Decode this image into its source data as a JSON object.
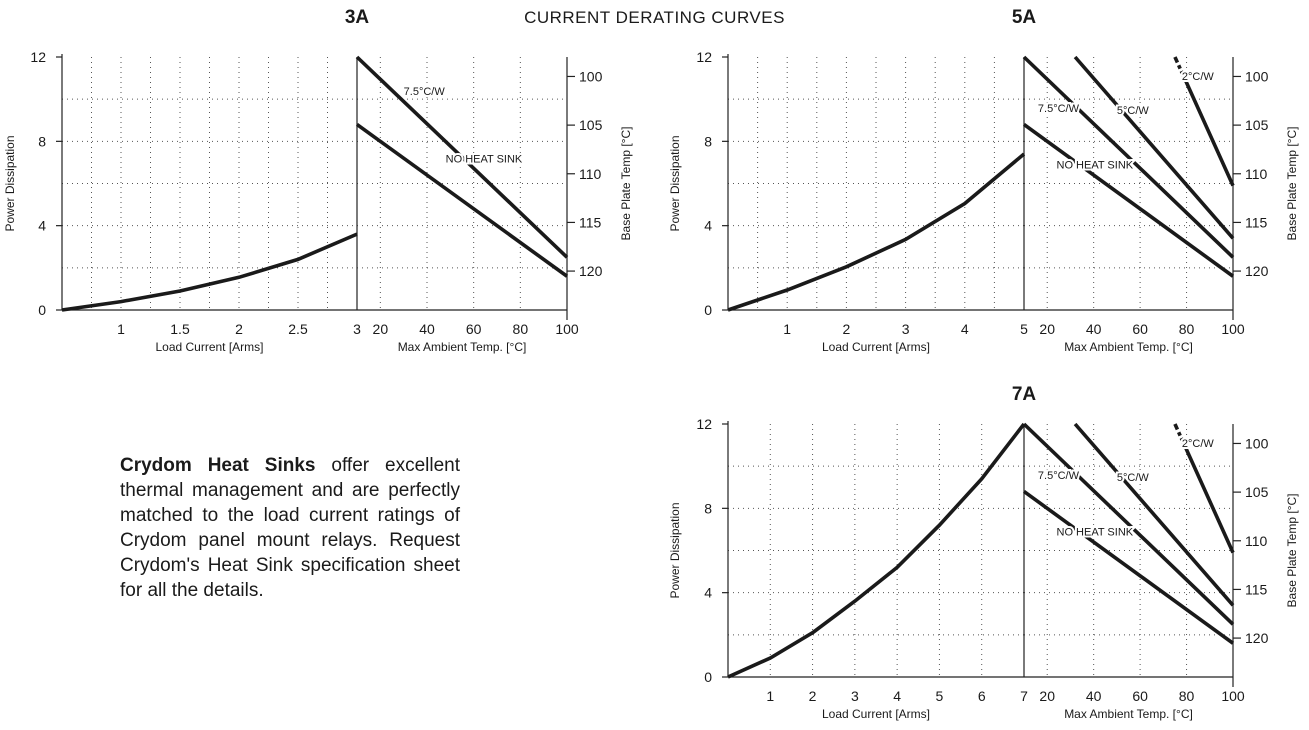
{
  "page_title": "CURRENT DERATING CURVES",
  "blurb": {
    "bold": "Crydom Heat Sinks",
    "text": " offer excellent thermal management and are perfectly matched to the load current ratings of Crydom panel mount relays. Request Crydom's Heat Sink specification sheet for all the details."
  },
  "chart_data": [
    {
      "id": "3A",
      "type": "line",
      "title": "3A",
      "left_panel": {
        "xlabel": "Load Current [Arms]",
        "ylabel": "Power Dissipation",
        "xlim": [
          0.5,
          3
        ],
        "ylim": [
          0,
          12
        ],
        "xticks": [
          1,
          1.5,
          2,
          2.5,
          3
        ],
        "xtick_labels": [
          "1",
          "1.5",
          "2",
          "2.5",
          "3"
        ],
        "yticks": [
          0,
          4,
          8,
          12
        ],
        "ytick_labels": [
          "0",
          "4",
          "8",
          "12"
        ],
        "xgrid": [
          0.75,
          1,
          1.25,
          1.5,
          1.75,
          2,
          2.25,
          2.5,
          2.75
        ],
        "ygrid": [
          2,
          4,
          6,
          8,
          10
        ],
        "series": [
          {
            "x": [
              0.5,
              1,
              1.5,
              2,
              2.5,
              3
            ],
            "y": [
              0,
              0.4,
              0.9,
              1.55,
              2.4,
              3.6
            ]
          }
        ]
      },
      "right_panel": {
        "xlabel": "Max Ambient Temp. [°C]",
        "ylabel": "Base Plate Temp [°C]",
        "xlim": [
          10,
          100
        ],
        "ylim": [
          0,
          12
        ],
        "xticks": [
          20,
          40,
          60,
          80,
          100
        ],
        "xtick_labels": [
          "20",
          "40",
          "60",
          "80",
          "100"
        ],
        "y2ticks": [
          100,
          105,
          110,
          115,
          120
        ],
        "y2tick_labels": [
          "100",
          "105",
          "110",
          "115",
          "120"
        ],
        "y2lim": [
          98,
          124
        ],
        "xgrid": [
          20,
          40,
          60,
          80
        ],
        "ygrid": [
          2,
          4,
          6,
          8,
          10
        ],
        "series": [
          {
            "name": "7.5°C/W",
            "x": [
              10,
              100
            ],
            "y": [
              12,
              2.5
            ],
            "label_at": [
              30,
              10.2
            ]
          },
          {
            "name": "NO HEAT SINK",
            "x": [
              10,
              100
            ],
            "y": [
              8.8,
              1.6
            ],
            "label_at": [
              48,
              7.0
            ]
          }
        ]
      }
    },
    {
      "id": "5A",
      "type": "line",
      "title": "5A",
      "left_panel": {
        "xlabel": "Load Current [Arms]",
        "ylabel": "Power Dissipation",
        "xlim": [
          0,
          5
        ],
        "ylim": [
          0,
          12
        ],
        "xticks": [
          1,
          2,
          3,
          4,
          5
        ],
        "xtick_labels": [
          "1",
          "2",
          "3",
          "4",
          "5"
        ],
        "yticks": [
          0,
          4,
          8,
          12
        ],
        "ytick_labels": [
          "0",
          "4",
          "8",
          "12"
        ],
        "xgrid": [
          0.5,
          1,
          1.5,
          2,
          2.5,
          3,
          3.5,
          4,
          4.5
        ],
        "ygrid": [
          2,
          4,
          6,
          8,
          10
        ],
        "series": [
          {
            "x": [
              0,
              1,
              2,
              3,
              4,
              5
            ],
            "y": [
              0,
              0.95,
              2.05,
              3.35,
              5.05,
              7.4
            ]
          }
        ]
      },
      "right_panel": {
        "xlabel": "Max Ambient Temp. [°C]",
        "ylabel": "Base Plate Temp [°C]",
        "xlim": [
          10,
          100
        ],
        "ylim": [
          0,
          12
        ],
        "xticks": [
          20,
          40,
          60,
          80,
          100
        ],
        "xtick_labels": [
          "20",
          "40",
          "60",
          "80",
          "100"
        ],
        "y2ticks": [
          100,
          105,
          110,
          115,
          120
        ],
        "y2tick_labels": [
          "100",
          "105",
          "110",
          "115",
          "120"
        ],
        "y2lim": [
          98,
          124
        ],
        "xgrid": [
          20,
          40,
          60,
          80
        ],
        "ygrid": [
          2,
          4,
          6,
          8,
          10
        ],
        "series": [
          {
            "name": "2°C/W",
            "x": [
              75,
              100
            ],
            "y": [
              12,
              5.9
            ],
            "label_at": [
              78,
              10.9
            ],
            "dashed_start": true
          },
          {
            "name": "5°C/W",
            "x": [
              32,
              100
            ],
            "y": [
              12,
              3.4
            ],
            "label_at": [
              50,
              9.3
            ]
          },
          {
            "name": "7.5°C/W",
            "x": [
              10,
              100
            ],
            "y": [
              12,
              2.5
            ],
            "label_at": [
              16,
              9.4
            ]
          },
          {
            "name": "NO HEAT SINK",
            "x": [
              10,
              100
            ],
            "y": [
              8.8,
              1.6
            ],
            "label_at": [
              24,
              6.7
            ]
          }
        ]
      }
    },
    {
      "id": "7A",
      "type": "line",
      "title": "7A",
      "left_panel": {
        "xlabel": "Load Current [Arms]",
        "ylabel": "Power Dissipation",
        "xlim": [
          0,
          7
        ],
        "ylim": [
          0,
          12
        ],
        "xticks": [
          1,
          2,
          3,
          4,
          5,
          6,
          7
        ],
        "xtick_labels": [
          "1",
          "2",
          "3",
          "4",
          "5",
          "6",
          "7"
        ],
        "yticks": [
          0,
          4,
          8,
          12
        ],
        "ytick_labels": [
          "0",
          "4",
          "8",
          "12"
        ],
        "xgrid": [
          1,
          2,
          3,
          4,
          5,
          6
        ],
        "ygrid": [
          2,
          4,
          6,
          8,
          10
        ],
        "series": [
          {
            "x": [
              0,
              1,
              2,
              3,
              4,
              5,
              6,
              7
            ],
            "y": [
              0,
              0.9,
              2.1,
              3.6,
              5.2,
              7.2,
              9.4,
              12
            ]
          }
        ]
      },
      "right_panel": {
        "xlabel": "Max Ambient Temp. [°C]",
        "ylabel": "Base Plate Temp [°C]",
        "xlim": [
          10,
          100
        ],
        "ylim": [
          0,
          12
        ],
        "xticks": [
          20,
          40,
          60,
          80,
          100
        ],
        "xtick_labels": [
          "20",
          "40",
          "60",
          "80",
          "100"
        ],
        "y2ticks": [
          100,
          105,
          110,
          115,
          120
        ],
        "y2tick_labels": [
          "100",
          "105",
          "110",
          "115",
          "120"
        ],
        "y2lim": [
          98,
          124
        ],
        "xgrid": [
          20,
          40,
          60,
          80
        ],
        "ygrid": [
          2,
          4,
          6,
          8,
          10
        ],
        "series": [
          {
            "name": "2°C/W",
            "x": [
              75,
              100
            ],
            "y": [
              12,
              5.9
            ],
            "label_at": [
              78,
              10.9
            ],
            "dashed_start": true
          },
          {
            "name": "5°C/W",
            "x": [
              32,
              100
            ],
            "y": [
              12,
              3.4
            ],
            "label_at": [
              50,
              9.3
            ]
          },
          {
            "name": "7.5°C/W",
            "x": [
              10,
              100
            ],
            "y": [
              12,
              2.5
            ],
            "label_at": [
              16,
              9.4
            ]
          },
          {
            "name": "NO HEAT SINK",
            "x": [
              10,
              100
            ],
            "y": [
              8.8,
              1.6
            ],
            "label_at": [
              24,
              6.7
            ]
          }
        ]
      }
    }
  ]
}
